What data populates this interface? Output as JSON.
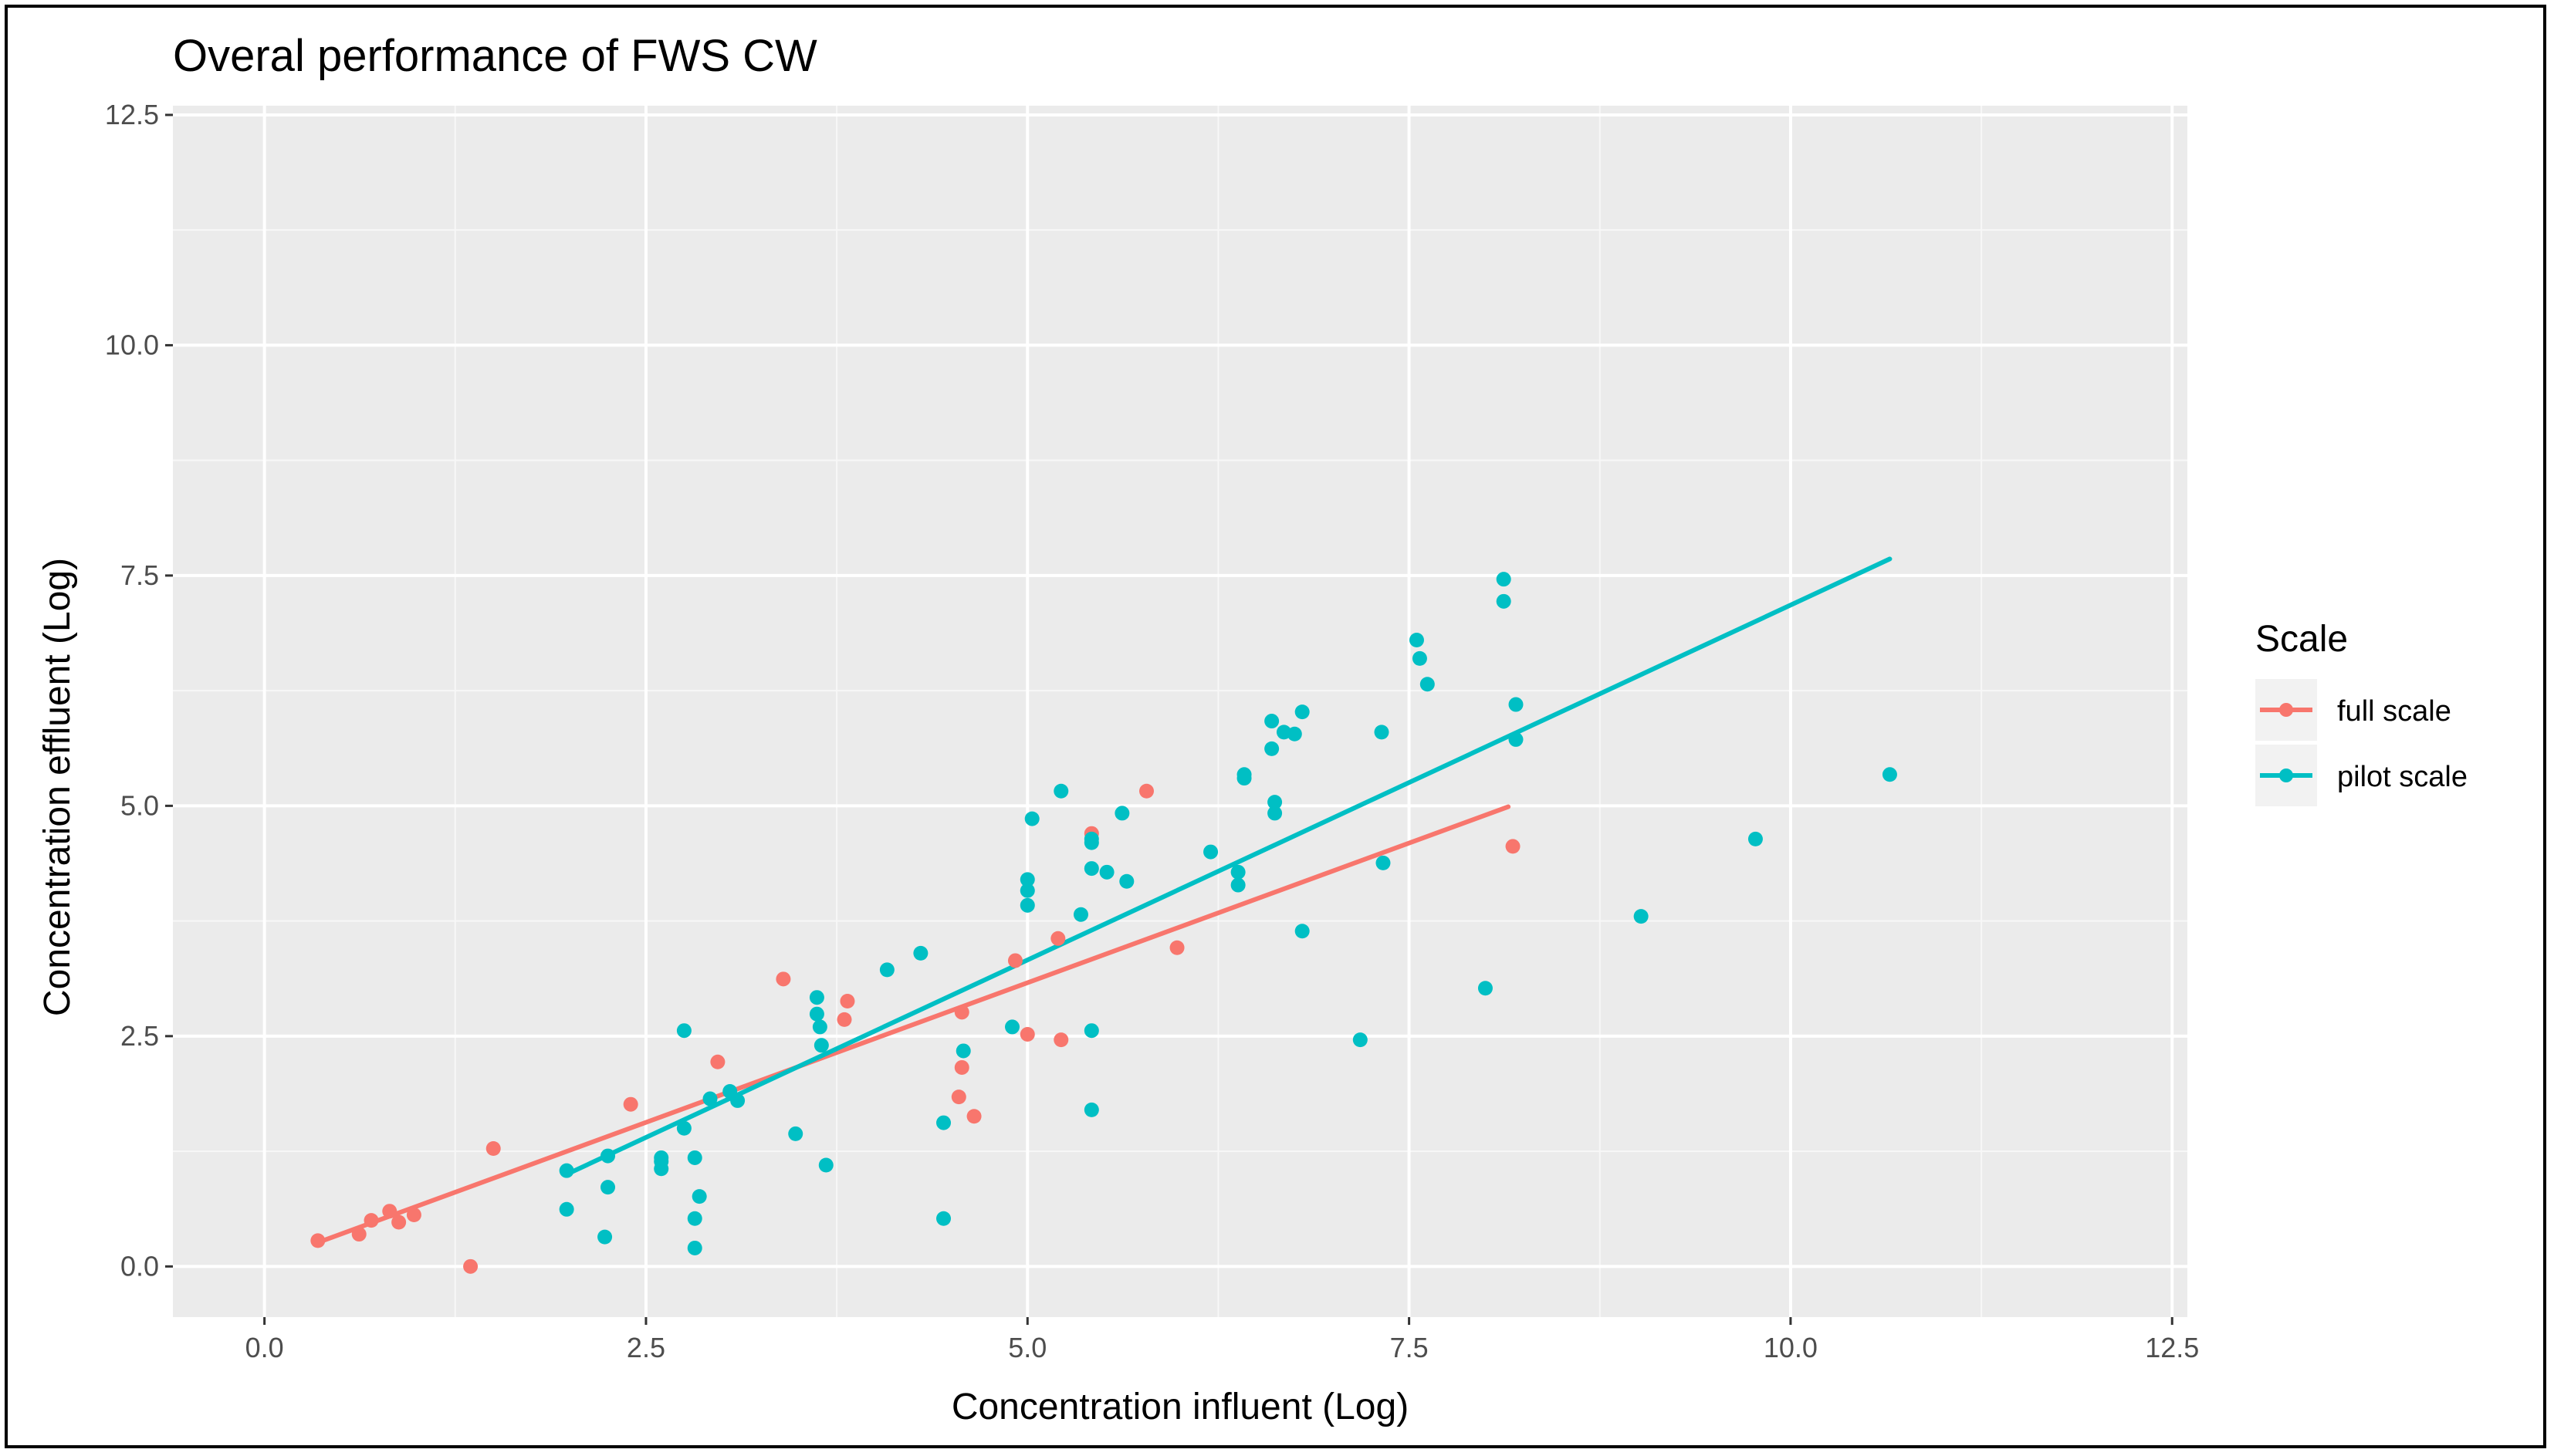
{
  "chart_data": {
    "type": "scatter",
    "title": "Overal performance of FWS CW",
    "xlabel": "Concentration influent (Log)",
    "ylabel": "Concentration effluent (Log)",
    "xlim": [
      -0.6,
      12.6
    ],
    "ylim": [
      -0.55,
      12.6
    ],
    "x_ticks": [
      0.0,
      2.5,
      5.0,
      7.5,
      10.0,
      12.5
    ],
    "x_tick_labels": [
      "0.0",
      "2.5",
      "5.0",
      "7.5",
      "10.0",
      "12.5"
    ],
    "y_ticks": [
      0.0,
      2.5,
      5.0,
      7.5,
      10.0,
      12.5
    ],
    "y_tick_labels": [
      "0.0",
      "2.5",
      "5.0",
      "7.5",
      "10.0",
      "12.5"
    ],
    "grid": true,
    "legend": {
      "title": "Scale",
      "position": "right",
      "entries": [
        "full scale",
        "pilot scale"
      ]
    },
    "series": [
      {
        "name": "full scale",
        "color": "#F8766D",
        "points": [
          [
            0.35,
            0.28
          ],
          [
            0.62,
            0.35
          ],
          [
            0.7,
            0.5
          ],
          [
            0.82,
            0.6
          ],
          [
            0.88,
            0.48
          ],
          [
            0.98,
            0.56
          ],
          [
            1.35,
            0.0
          ],
          [
            1.5,
            1.28
          ],
          [
            2.4,
            1.76
          ],
          [
            2.97,
            2.22
          ],
          [
            3.4,
            3.12
          ],
          [
            3.82,
            2.88
          ],
          [
            3.8,
            2.68
          ],
          [
            4.55,
            1.84
          ],
          [
            4.57,
            2.16
          ],
          [
            4.57,
            2.76
          ],
          [
            4.65,
            1.63
          ],
          [
            4.92,
            3.32
          ],
          [
            5.0,
            2.52
          ],
          [
            5.2,
            3.56
          ],
          [
            5.22,
            2.46
          ],
          [
            5.42,
            4.7
          ],
          [
            5.78,
            5.16
          ],
          [
            5.98,
            3.46
          ],
          [
            8.18,
            4.56
          ]
        ],
        "trend": [
          [
            0.35,
            0.26
          ],
          [
            8.15,
            4.99
          ]
        ]
      },
      {
        "name": "pilot scale",
        "color": "#00BFC4",
        "points": [
          [
            1.98,
            0.62
          ],
          [
            1.98,
            1.04
          ],
          [
            2.23,
            0.32
          ],
          [
            2.25,
            0.86
          ],
          [
            2.25,
            1.2
          ],
          [
            2.6,
            1.06
          ],
          [
            2.6,
            1.14
          ],
          [
            2.6,
            1.18
          ],
          [
            2.75,
            1.5
          ],
          [
            2.75,
            2.56
          ],
          [
            2.82,
            1.18
          ],
          [
            2.82,
            0.52
          ],
          [
            2.82,
            0.2
          ],
          [
            2.85,
            0.76
          ],
          [
            2.92,
            1.82
          ],
          [
            3.05,
            1.9
          ],
          [
            3.1,
            1.8
          ],
          [
            3.48,
            1.44
          ],
          [
            3.62,
            2.92
          ],
          [
            3.62,
            2.74
          ],
          [
            3.64,
            2.6
          ],
          [
            3.65,
            2.4
          ],
          [
            3.68,
            1.1
          ],
          [
            4.08,
            3.22
          ],
          [
            4.3,
            3.4
          ],
          [
            4.45,
            1.56
          ],
          [
            4.45,
            0.52
          ],
          [
            4.58,
            2.34
          ],
          [
            4.9,
            2.6
          ],
          [
            5.0,
            4.2
          ],
          [
            5.0,
            4.08
          ],
          [
            5.0,
            3.92
          ],
          [
            5.03,
            4.86
          ],
          [
            5.22,
            5.16
          ],
          [
            5.35,
            3.82
          ],
          [
            5.42,
            4.64
          ],
          [
            5.42,
            4.6
          ],
          [
            5.42,
            4.32
          ],
          [
            5.42,
            2.56
          ],
          [
            5.42,
            1.7
          ],
          [
            5.52,
            4.28
          ],
          [
            5.62,
            4.92
          ],
          [
            5.65,
            4.18
          ],
          [
            6.2,
            4.5
          ],
          [
            6.38,
            4.28
          ],
          [
            6.38,
            4.14
          ],
          [
            6.42,
            5.34
          ],
          [
            6.42,
            5.3
          ],
          [
            6.6,
            5.92
          ],
          [
            6.6,
            5.62
          ],
          [
            6.62,
            5.04
          ],
          [
            6.62,
            4.92
          ],
          [
            6.68,
            5.8
          ],
          [
            6.75,
            5.78
          ],
          [
            6.8,
            6.02
          ],
          [
            6.8,
            3.64
          ],
          [
            7.18,
            2.46
          ],
          [
            7.32,
            5.8
          ],
          [
            7.33,
            4.38
          ],
          [
            7.55,
            6.8
          ],
          [
            7.57,
            6.6
          ],
          [
            7.62,
            6.32
          ],
          [
            8.0,
            3.02
          ],
          [
            8.12,
            7.46
          ],
          [
            8.12,
            7.22
          ],
          [
            8.2,
            6.1
          ],
          [
            8.2,
            5.72
          ],
          [
            9.02,
            3.8
          ],
          [
            9.77,
            4.64
          ],
          [
            10.65,
            5.34
          ]
        ],
        "trend": [
          [
            1.98,
            1.0
          ],
          [
            10.65,
            7.68
          ]
        ]
      }
    ]
  }
}
